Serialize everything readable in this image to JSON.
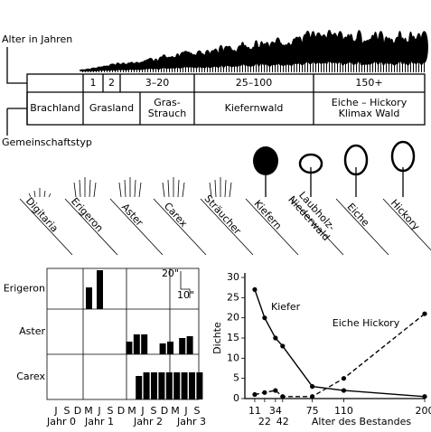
{
  "header": {
    "age_label": "Alter in Jahren",
    "community_label": "Gemeinschaftstyp"
  },
  "ages": [
    "1",
    "2",
    "3–20",
    "25–100",
    "150+"
  ],
  "communities": [
    [
      "Brachland"
    ],
    [
      "Grasland"
    ],
    [
      "Gras-",
      "Strauch"
    ],
    [
      "Kiefernwald"
    ],
    [
      "Eiche – Hickory",
      "Klimax Wald"
    ]
  ],
  "species": [
    [
      "Digitaria"
    ],
    [
      "Erigeron"
    ],
    [
      "Aster"
    ],
    [
      "Carex"
    ],
    [
      "Sträucher"
    ],
    [
      "Kiefern"
    ],
    [
      "Laubholz-",
      "Niederwald"
    ],
    [
      "Eiche"
    ],
    [
      "Hickory"
    ]
  ],
  "phenology": {
    "months": [
      "J",
      "S",
      "D",
      "M",
      "J",
      "S",
      "D",
      "M",
      "J",
      "S",
      "D",
      "M",
      "J",
      "S"
    ],
    "years": [
      "Jahr 0",
      "Jahr 1",
      "Jahr 2",
      "Jahr 3"
    ],
    "scale_labels": [
      "20\"",
      "10\""
    ],
    "rows": [
      {
        "name": "Erigeron",
        "bars": [
          {
            "x": 3,
            "value": 24
          },
          {
            "x": 4,
            "value": 43
          }
        ]
      },
      {
        "name": "Aster",
        "bars": [
          {
            "x": 6.7,
            "value": 14
          },
          {
            "x": 7.4,
            "value": 22
          },
          {
            "x": 8.1,
            "value": 22
          },
          {
            "x": 9.8,
            "value": 12
          },
          {
            "x": 10.5,
            "value": 14
          },
          {
            "x": 11.6,
            "value": 18
          },
          {
            "x": 12.3,
            "value": 20
          }
        ]
      },
      {
        "name": "Carex",
        "bars": [
          {
            "x": 7.6,
            "value": 26
          },
          {
            "x": 8.3,
            "value": 30
          },
          {
            "x": 9,
            "value": 30
          },
          {
            "x": 9.7,
            "value": 30
          },
          {
            "x": 10.4,
            "value": 30
          },
          {
            "x": 11.1,
            "value": 30
          },
          {
            "x": 11.8,
            "value": 30
          },
          {
            "x": 12.5,
            "value": 30
          },
          {
            "x": 13.2,
            "value": 30
          }
        ]
      }
    ]
  },
  "chart_data": {
    "type": "line",
    "x": [
      11,
      22,
      34,
      42,
      75,
      110,
      200
    ],
    "xlim": [
      0,
      200
    ],
    "xticks": [
      11,
      22,
      34,
      42,
      75,
      110,
      200
    ],
    "ylim": [
      0,
      30
    ],
    "yticks": [
      0,
      5,
      10,
      15,
      20,
      25,
      30
    ],
    "ylabel": "Dichte",
    "xlabel": "Alter des Bestandes",
    "series": [
      {
        "name": "Kiefer",
        "color": "#000000",
        "values": [
          27,
          20,
          15,
          13,
          3,
          2,
          0.5
        ]
      },
      {
        "name": "Eiche Hickory",
        "color": "#000000",
        "dashed": true,
        "values": [
          1,
          1.5,
          2,
          0.5,
          0.5,
          5,
          21
        ]
      }
    ]
  }
}
